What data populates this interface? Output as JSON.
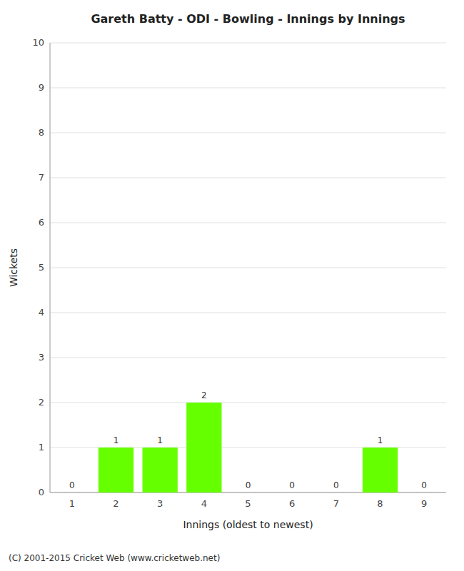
{
  "chart_data": {
    "type": "bar",
    "title": "Gareth Batty - ODI - Bowling - Innings by Innings",
    "xlabel": "Innings (oldest to newest)",
    "ylabel": "Wickets",
    "categories": [
      "1",
      "2",
      "3",
      "4",
      "5",
      "6",
      "7",
      "8",
      "9"
    ],
    "values": [
      0,
      1,
      1,
      2,
      0,
      0,
      0,
      1,
      0
    ],
    "color": "#66ff00",
    "ylim": [
      0,
      10
    ],
    "yticks": [
      0,
      1,
      2,
      3,
      4,
      5,
      6,
      7,
      8,
      9,
      10
    ],
    "grid": true,
    "data_labels": true,
    "annotations": [
      "(C) 2001-2015 Cricket Web (www.cricketweb.net)"
    ]
  }
}
